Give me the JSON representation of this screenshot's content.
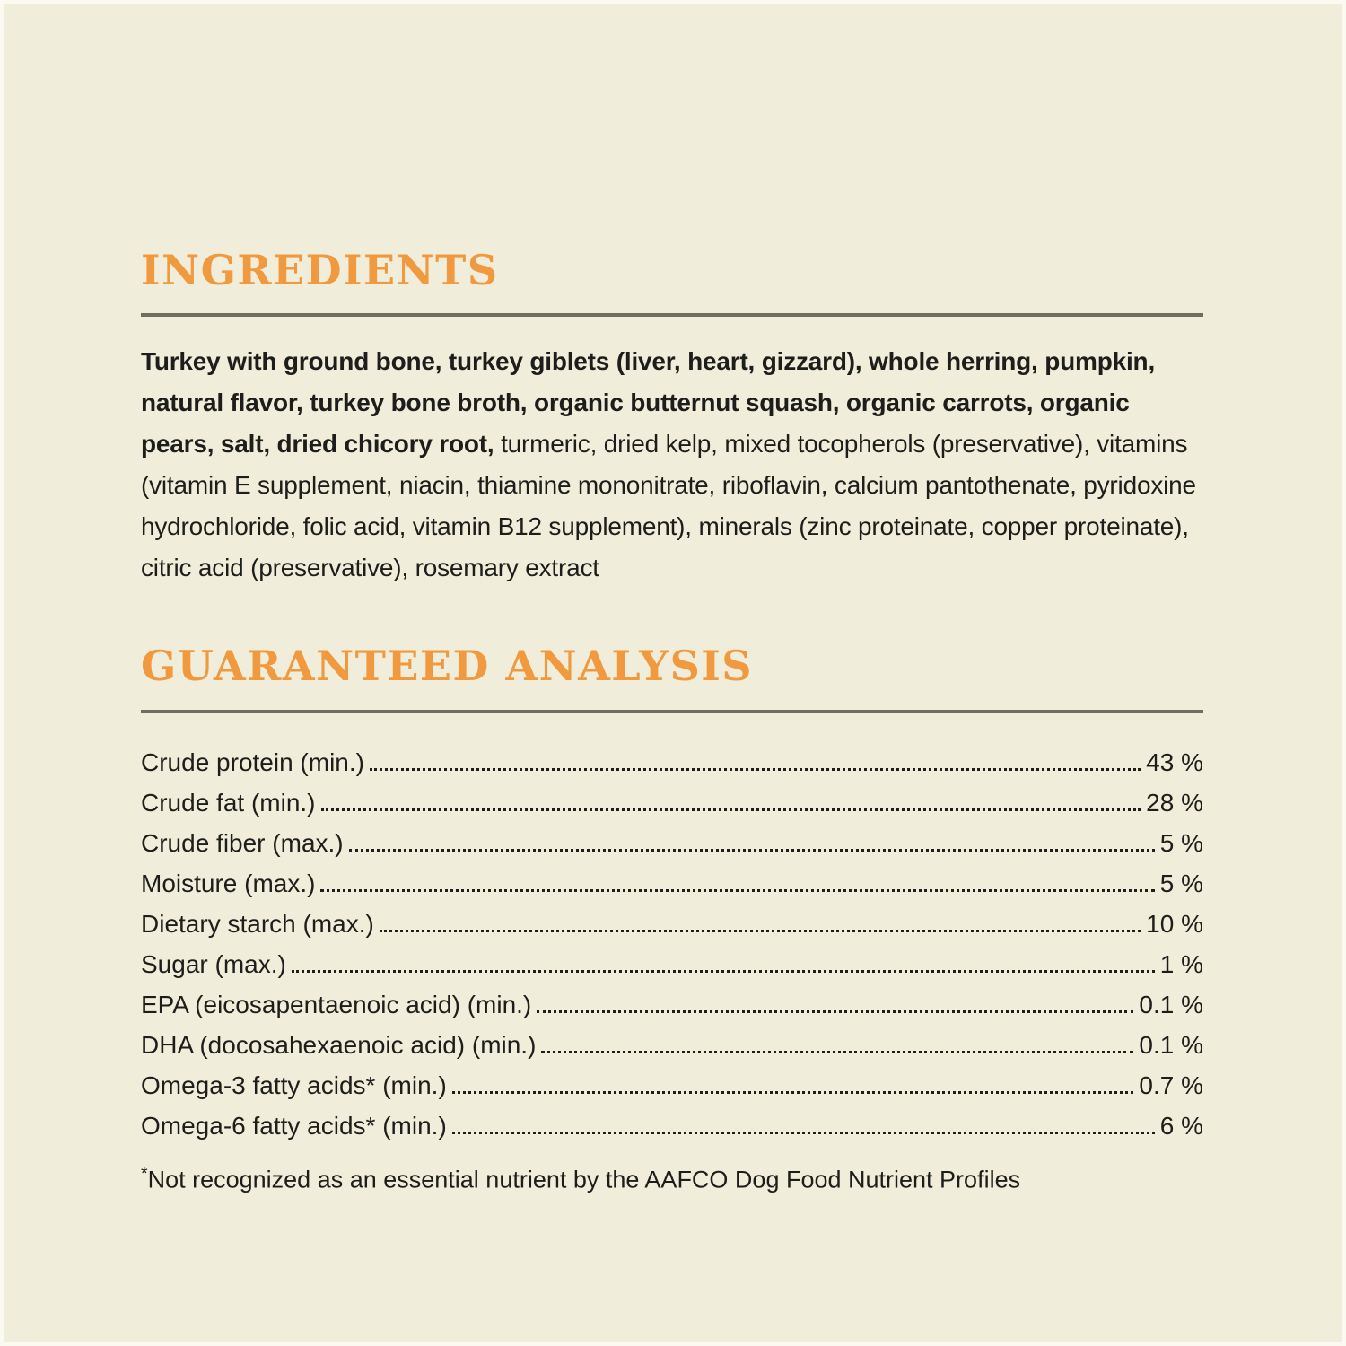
{
  "page": {
    "background_color": "#f0edda",
    "accent_color": "#f0993e",
    "rule_color": "#6e6e62",
    "text_color": "#1d1d1b"
  },
  "ingredients": {
    "heading": "INGREDIENTS",
    "bold_text": "Turkey with ground bone, turkey giblets (liver, heart, gizzard), whole herring, pumpkin, natural flavor, turkey bone broth, organic butternut squash, organic carrots, organic pears, salt, dried chicory root,",
    "regular_text": " turmeric, dried kelp, mixed tocopherols (preservative), vitamins (vitamin E supplement, niacin, thiamine mononitrate, riboflavin, calcium pantothenate, pyridoxine hydrochloride, folic acid, vitamin B12 supplement), minerals (zinc proteinate, copper proteinate), citric acid (preservative), rosemary extract"
  },
  "guaranteed_analysis": {
    "heading": "GUARANTEED ANALYSIS",
    "rows": [
      {
        "label": "Crude protein (min.)",
        "value": "43 %"
      },
      {
        "label": "Crude fat (min.)",
        "value": "28 %"
      },
      {
        "label": "Crude fiber (max.)",
        "value": "5 %"
      },
      {
        "label": "Moisture (max.)",
        "value": "5 %"
      },
      {
        "label": "Dietary starch (max.)",
        "value": "10 %"
      },
      {
        "label": "Sugar (max.)",
        "value": "1 %"
      },
      {
        "label": "EPA (eicosapentaenoic acid) (min.)",
        "value": "0.1 %"
      },
      {
        "label": "DHA (docosahexaenoic acid) (min.)",
        "value": "0.1 %"
      },
      {
        "label": "Omega-3 fatty acids* (min.)",
        "value": "0.7 %"
      },
      {
        "label": "Omega-6 fatty acids* (min.)",
        "value": "6 %"
      }
    ],
    "footnote_marker": "*",
    "footnote_text": "Not recognized as an essential nutrient by the AAFCO Dog Food Nutrient Profiles"
  }
}
